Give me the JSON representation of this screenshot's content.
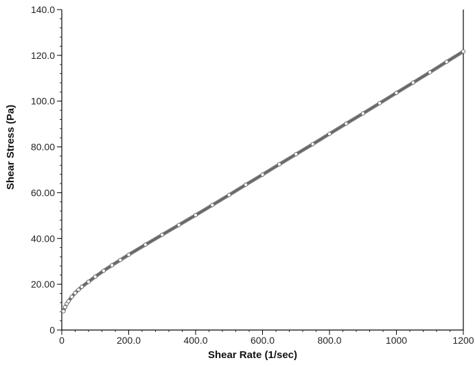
{
  "chart_data": {
    "type": "scatter",
    "title": "",
    "xlabel": "Shear Rate (1/sec)",
    "ylabel": "Shear Stress (Pa)",
    "xlim": [
      0,
      1200
    ],
    "ylim": [
      0,
      140
    ],
    "grid": false,
    "legend": "none",
    "x_ticks": [
      {
        "value": 0,
        "label": "0"
      },
      {
        "value": 200,
        "label": "200.0"
      },
      {
        "value": 400,
        "label": "400.0"
      },
      {
        "value": 600,
        "label": "600.0"
      },
      {
        "value": 800,
        "label": "800.0"
      },
      {
        "value": 1000,
        "label": "1000"
      },
      {
        "value": 1200,
        "label": "1200"
      }
    ],
    "y_ticks": [
      {
        "value": 0,
        "label": "0"
      },
      {
        "value": 20,
        "label": "20.00"
      },
      {
        "value": 40,
        "label": "40.00"
      },
      {
        "value": 60,
        "label": "60.00"
      },
      {
        "value": 80,
        "label": "80.00"
      },
      {
        "value": 100,
        "label": "100.0"
      },
      {
        "value": 120,
        "label": "120.0"
      },
      {
        "value": 140,
        "label": "140.0"
      }
    ],
    "series": [
      {
        "marker": "open-circle",
        "color": "#6b6b6b",
        "x": [
          5,
          10,
          15,
          20,
          30,
          40,
          50,
          60,
          80,
          100,
          125,
          150,
          175,
          200,
          250,
          300,
          350,
          400,
          450,
          500,
          550,
          600,
          650,
          700,
          750,
          800,
          850,
          900,
          950,
          1000,
          1050,
          1100,
          1150,
          1200
        ],
        "y": [
          8.2,
          10.0,
          11.5,
          12.6,
          14.5,
          16.2,
          17.6,
          18.9,
          21.1,
          23.3,
          25.9,
          28.3,
          30.6,
          32.9,
          37.3,
          41.6,
          45.9,
          50.2,
          54.6,
          59.0,
          63.5,
          67.9,
          72.4,
          76.8,
          81.2,
          85.7,
          90.2,
          94.6,
          99.1,
          103.6,
          108.1,
          112.6,
          117.2,
          121.7
        ]
      }
    ]
  }
}
